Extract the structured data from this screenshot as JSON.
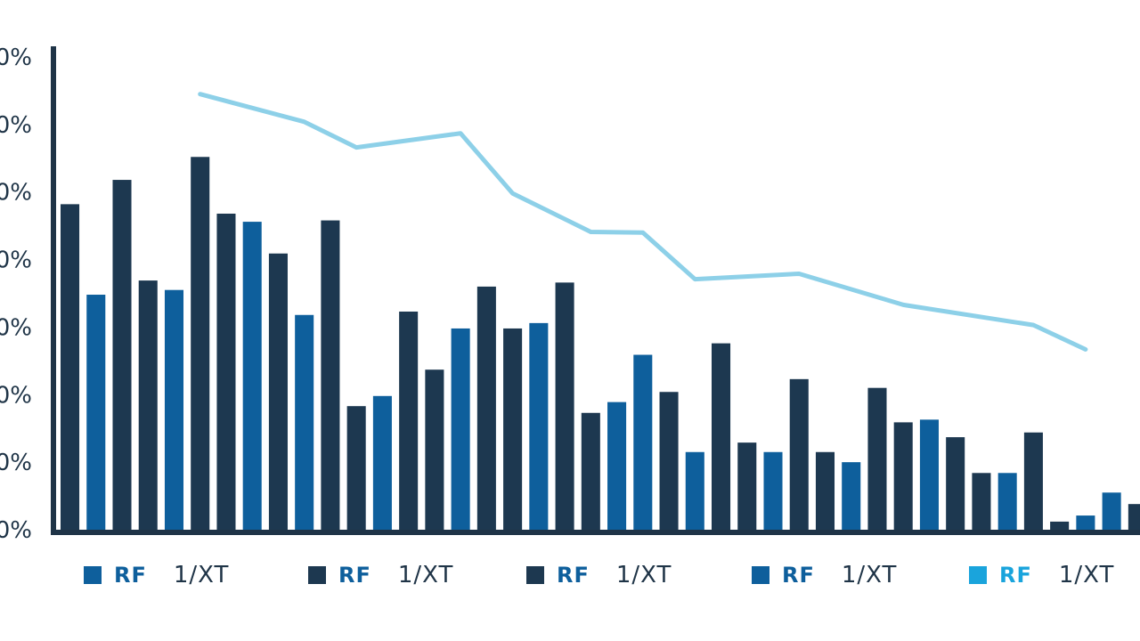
{
  "colors": {
    "dark": "#1d3850",
    "mid": "#0e5f9c",
    "light": "#1aa4dc",
    "line": "#8dd0e8",
    "axis": "#1f3447"
  },
  "chart_data": {
    "type": "bar",
    "title": "",
    "xlabel": "",
    "ylabel": "",
    "ylim": [
      0,
      70
    ],
    "y_ticks": [
      "0%",
      "0%",
      "0%",
      "0%",
      "0%",
      "0%",
      "0%",
      "0%"
    ],
    "bars": [
      {
        "value": 48.2,
        "color": "dark"
      },
      {
        "value": 34.8,
        "color": "mid"
      },
      {
        "value": 51.8,
        "color": "dark"
      },
      {
        "value": 36.9,
        "color": "dark"
      },
      {
        "value": 35.5,
        "color": "mid"
      },
      {
        "value": 55.2,
        "color": "dark"
      },
      {
        "value": 46.8,
        "color": "dark"
      },
      {
        "value": 45.6,
        "color": "mid"
      },
      {
        "value": 40.9,
        "color": "dark"
      },
      {
        "value": 31.8,
        "color": "mid"
      },
      {
        "value": 45.8,
        "color": "dark"
      },
      {
        "value": 18.3,
        "color": "dark"
      },
      {
        "value": 19.8,
        "color": "mid"
      },
      {
        "value": 32.3,
        "color": "dark"
      },
      {
        "value": 23.7,
        "color": "dark"
      },
      {
        "value": 29.8,
        "color": "mid"
      },
      {
        "value": 36.0,
        "color": "dark"
      },
      {
        "value": 29.8,
        "color": "dark"
      },
      {
        "value": 30.6,
        "color": "mid"
      },
      {
        "value": 36.6,
        "color": "dark"
      },
      {
        "value": 17.3,
        "color": "dark"
      },
      {
        "value": 18.9,
        "color": "mid"
      },
      {
        "value": 25.9,
        "color": "mid"
      },
      {
        "value": 20.4,
        "color": "dark"
      },
      {
        "value": 11.5,
        "color": "mid"
      },
      {
        "value": 27.6,
        "color": "dark"
      },
      {
        "value": 12.9,
        "color": "dark"
      },
      {
        "value": 11.5,
        "color": "mid"
      },
      {
        "value": 22.3,
        "color": "dark"
      },
      {
        "value": 11.5,
        "color": "dark"
      },
      {
        "value": 10.0,
        "color": "mid"
      },
      {
        "value": 21.0,
        "color": "dark"
      },
      {
        "value": 15.9,
        "color": "dark"
      },
      {
        "value": 16.3,
        "color": "mid"
      },
      {
        "value": 13.7,
        "color": "dark"
      },
      {
        "value": 8.4,
        "color": "dark"
      },
      {
        "value": 8.4,
        "color": "mid"
      },
      {
        "value": 14.4,
        "color": "dark"
      },
      {
        "value": 1.2,
        "color": "dark"
      },
      {
        "value": 2.1,
        "color": "mid"
      },
      {
        "value": 5.5,
        "color": "mid"
      },
      {
        "value": 3.8,
        "color": "dark"
      }
    ],
    "line_series": {
      "x_index": [
        5,
        9,
        11,
        15,
        17,
        20,
        22,
        24,
        28,
        32,
        37,
        39
      ],
      "values": [
        64.5,
        60.4,
        56.6,
        58.7,
        49.8,
        44.1,
        44.0,
        37.1,
        37.9,
        33.3,
        30.3,
        26.7
      ]
    }
  },
  "legend": [
    {
      "code": "RF",
      "name": "1/XT",
      "color": "mid"
    },
    {
      "code": "RF",
      "name": "1/XT",
      "color": "dark"
    },
    {
      "code": "RF",
      "name": "1/XT",
      "color": "dark"
    },
    {
      "code": "RF",
      "name": "1/XT",
      "color": "mid"
    },
    {
      "code": "RF",
      "name": "1/XT",
      "color": "light"
    }
  ]
}
